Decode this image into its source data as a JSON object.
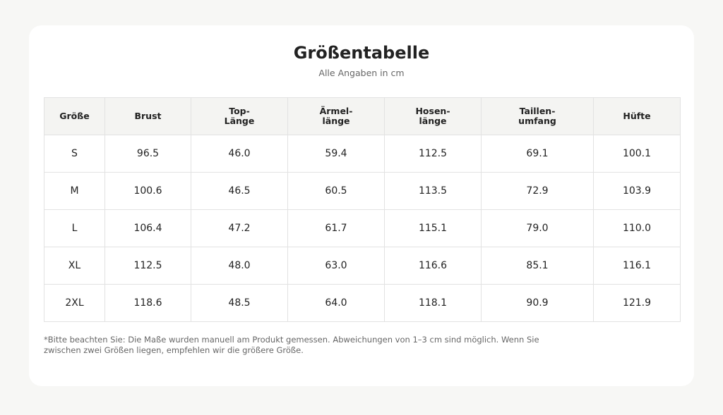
{
  "header": {
    "title": "Größentabelle",
    "subtitle": "Alle Angaben in cm"
  },
  "table": {
    "columns": [
      "Größe",
      "Brust",
      "Top-\nLänge",
      "Ärmel-\nlänge",
      "Hosen-\nlänge",
      "Taillen-\numfang",
      "Hüfte"
    ],
    "rows": [
      [
        "S",
        "96.5",
        "46.0",
        "59.4",
        "112.5",
        "69.1",
        "100.1"
      ],
      [
        "M",
        "100.6",
        "46.5",
        "60.5",
        "113.5",
        "72.9",
        "103.9"
      ],
      [
        "L",
        "106.4",
        "47.2",
        "61.7",
        "115.1",
        "79.0",
        "110.0"
      ],
      [
        "XL",
        "112.5",
        "48.0",
        "63.0",
        "116.6",
        "85.1",
        "116.1"
      ],
      [
        "2XL",
        "118.6",
        "48.5",
        "64.0",
        "118.1",
        "90.9",
        "121.9"
      ]
    ]
  },
  "footnote": "*Bitte beachten Sie: Die Maße wurden manuell am Produkt gemessen. Abweichungen von 1–3 cm sind möglich. Wenn Sie zwischen zwei Größen liegen, empfehlen wir die größere Größe.",
  "colors": {
    "page_background": "#f7f7f5",
    "card_background": "#ffffff",
    "header_row_background": "#f4f4f2",
    "border": "#e2e2e2",
    "text": "#222222",
    "muted_text": "#666666"
  }
}
